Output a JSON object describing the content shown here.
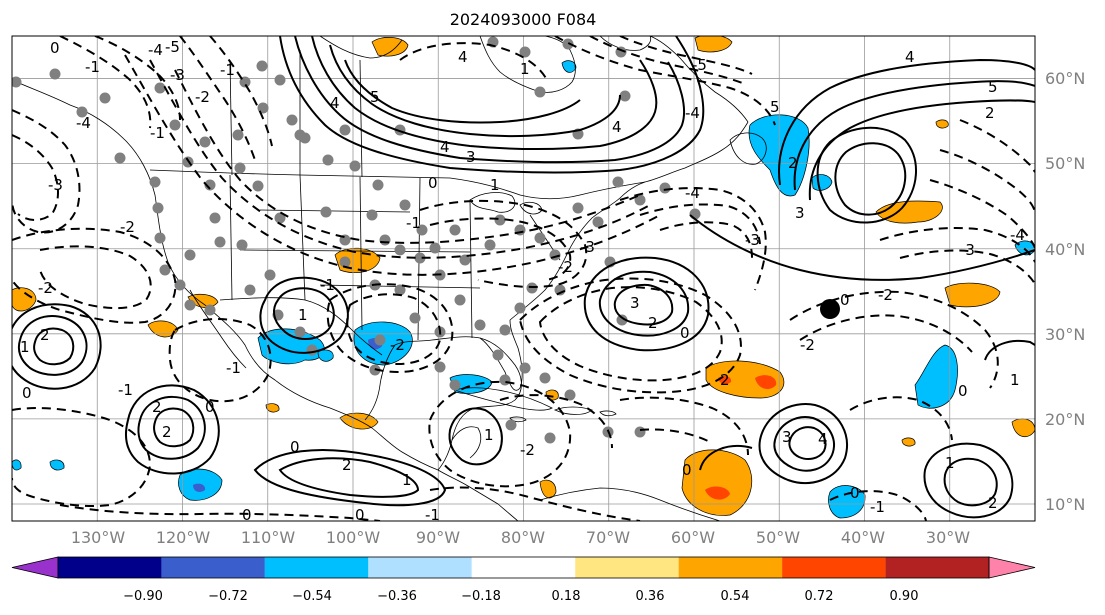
{
  "title": "2024093000 F084",
  "map": {
    "lon_range": [
      -140,
      -20
    ],
    "lat_range": [
      8,
      65
    ],
    "lat_labels": [
      "60°N",
      "50°N",
      "40°N",
      "30°N",
      "20°N",
      "10°N"
    ],
    "lon_labels": [
      "130°W",
      "120°W",
      "110°W",
      "100°W",
      "90°W",
      "80°W",
      "70°W",
      "60°W",
      "50°W",
      "40°W",
      "30°W"
    ],
    "colors": {
      "grid": "#9a9a9a",
      "coast": "#000000",
      "station": "#808080",
      "contour": "#000000"
    },
    "contour_labels": [
      "0",
      "1",
      "2",
      "3",
      "4",
      "5",
      "-1",
      "-2",
      "-3",
      "-4",
      "-5"
    ]
  },
  "colorbar": {
    "ticks": [
      "−0.90",
      "−0.72",
      "−0.54",
      "−0.36",
      "−0.18",
      "0.18",
      "0.36",
      "0.54",
      "0.72",
      "0.90"
    ],
    "colors": [
      "#9932cc",
      "#00008b",
      "#3a5fcd",
      "#00bfff",
      "#b0e0ff",
      "#ffffff",
      "#ffe680",
      "#ffa500",
      "#ff4500",
      "#b22222",
      "#ff82ab"
    ]
  }
}
